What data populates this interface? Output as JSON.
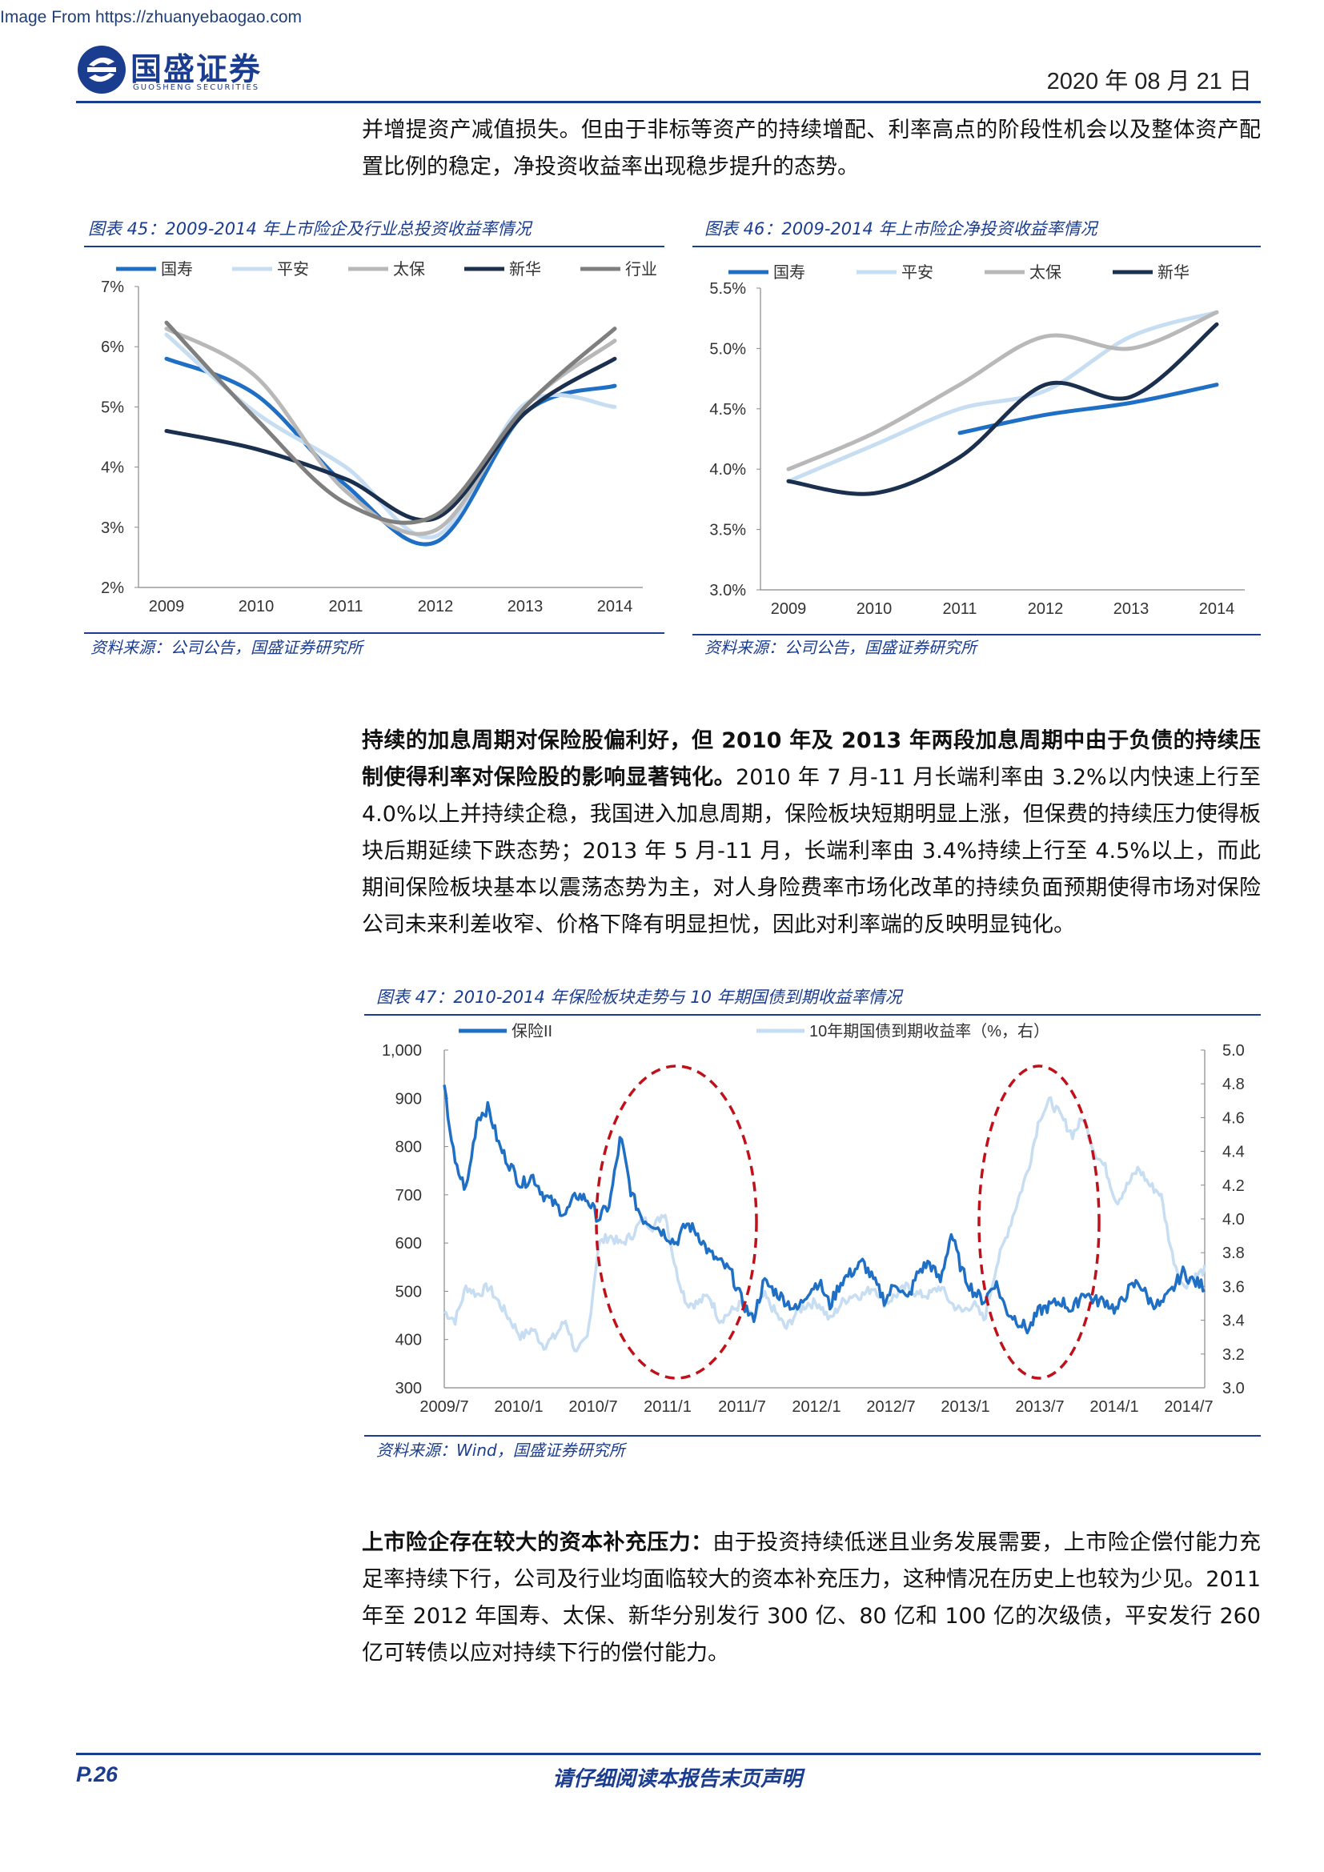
{
  "watermark": "Image From https://zhuanyebaogao.com",
  "brand": {
    "name_cn": "国盛证券",
    "name_en": "GUOSHENG SECURITIES"
  },
  "header": {
    "date": "2020 年 08 月 21 日"
  },
  "intro_text": "并增提资产减值损失。但由于非标等资产的持续增配、利率高点的阶段性机会以及整体资产配置比例的稳定，净投资收益率出现稳步提升的态势。",
  "para2": {
    "bold": "持续的加息周期对保险股偏利好，但 2010 年及 2013 年两段加息周期中由于负债的持续压制使得利率对保险股的影响显著钝化。",
    "text": "2010 年 7 月-11 月长端利率由 3.2%以内快速上行至 4.0%以上并持续企稳，我国进入加息周期，保险板块短期明显上涨，但保费的持续压力使得板块后期延续下跌态势；2013 年 5 月-11 月，长端利率由 3.4%持续上行至 4.5%以上，而此期间保险板块基本以震荡态势为主，对人身险费率市场化改革的持续负面预期使得市场对保险公司未来利差收窄、价格下降有明显担忧，因此对利率端的反映明显钝化。"
  },
  "para3": {
    "bold": "上市险企存在较大的资本补充压力：",
    "text": "由于投资持续低迷且业务发展需要，上市险企偿付能力充足率持续下行，公司及行业均面临较大的资本补充压力，这种情况在历史上也较为少见。2011 年至 2012 年国寿、太保、新华分别发行 300 亿、80 亿和 100 亿的次级债，平安发行 260 亿可转债以应对持续下行的偿付能力。"
  },
  "fig45": {
    "title": "图表 45：2009-2014 年上市险企及行业总投资收益率情况",
    "source": "资料来源：公司公告，国盛证券研究所"
  },
  "fig46": {
    "title": "图表 46：2009-2014 年上市险企净投资收益率情况",
    "source": "资料来源：公司公告，国盛证券研究所"
  },
  "fig47": {
    "title": "图表 47：2010-2014 年保险板块走势与 10 年期国债到期收益率情况",
    "source": "资料来源：Wind，国盛证券研究所"
  },
  "footer": {
    "page": "P.26",
    "disclaimer": "请仔细阅读本报告末页声明"
  },
  "chart_data": [
    {
      "type": "line",
      "id": "fig45",
      "x": [
        "2009",
        "2010",
        "2011",
        "2012",
        "2013",
        "2014"
      ],
      "ylim": [
        2,
        7
      ],
      "yticks": [
        "2%",
        "3%",
        "4%",
        "5%",
        "6%",
        "7%"
      ],
      "series": [
        {
          "name": "国寿",
          "color": "#1f6fc5",
          "values": [
            5.8,
            5.2,
            3.7,
            2.75,
            4.9,
            5.35
          ]
        },
        {
          "name": "平安",
          "color": "#c6ddf2",
          "values": [
            6.2,
            4.9,
            4.0,
            2.85,
            5.05,
            5.0
          ]
        },
        {
          "name": "太保",
          "color": "#b8b8b8",
          "values": [
            6.3,
            5.5,
            3.6,
            2.95,
            5.0,
            6.1
          ]
        },
        {
          "name": "新华",
          "color": "#1b2f4e",
          "values": [
            4.6,
            4.3,
            3.8,
            3.15,
            4.9,
            5.8
          ]
        },
        {
          "name": "行业",
          "color": "#7f7f7f",
          "values": [
            6.4,
            4.8,
            3.4,
            3.2,
            5.0,
            6.3
          ]
        }
      ]
    },
    {
      "type": "line",
      "id": "fig46",
      "x": [
        "2009",
        "2010",
        "2011",
        "2012",
        "2013",
        "2014"
      ],
      "ylim": [
        3.0,
        5.5
      ],
      "yticks": [
        "3.0%",
        "3.5%",
        "4.0%",
        "4.5%",
        "5.0%",
        "5.5%"
      ],
      "series": [
        {
          "name": "国寿",
          "color": "#1f6fc5",
          "values": [
            null,
            null,
            4.3,
            4.45,
            4.55,
            4.7
          ]
        },
        {
          "name": "平安",
          "color": "#c6ddf2",
          "values": [
            3.9,
            4.2,
            4.5,
            4.65,
            5.1,
            5.3
          ]
        },
        {
          "name": "太保",
          "color": "#b8b8b8",
          "values": [
            4.0,
            4.3,
            4.7,
            5.1,
            5.0,
            5.3
          ]
        },
        {
          "name": "新华",
          "color": "#1b2f4e",
          "values": [
            3.9,
            3.8,
            4.1,
            4.7,
            4.6,
            5.2
          ]
        }
      ]
    },
    {
      "type": "line",
      "id": "fig47",
      "x_ticks": [
        "2009/7",
        "2010/1",
        "2010/7",
        "2011/1",
        "2011/7",
        "2012/1",
        "2012/7",
        "2013/1",
        "2013/7",
        "2014/1",
        "2014/7"
      ],
      "ylim_left": [
        300,
        1000
      ],
      "yticks_left": [
        "300",
        "400",
        "500",
        "600",
        "700",
        "800",
        "900",
        "1,000"
      ],
      "ylim_right": [
        3.0,
        5.0
      ],
      "yticks_right": [
        "3.0",
        "3.2",
        "3.4",
        "3.6",
        "3.8",
        "4.0",
        "4.2",
        "4.4",
        "4.6",
        "4.8",
        "5.0"
      ],
      "series": [
        {
          "name": "保险II",
          "axis": "left",
          "color": "#1f6fc5",
          "values": [
            920,
            760,
            710,
            860,
            880,
            800,
            760,
            720,
            740,
            700,
            680,
            660,
            700,
            690,
            650,
            680,
            820,
            700,
            650,
            640,
            620,
            600,
            640,
            620,
            580,
            560,
            540,
            480,
            440,
            520,
            500,
            480,
            460,
            500,
            520,
            470,
            520,
            540,
            560,
            520,
            480,
            520,
            480,
            540,
            560,
            520,
            620,
            540,
            500,
            480,
            520,
            460,
            440,
            420,
            460,
            470,
            480,
            460,
            500,
            480,
            480,
            460,
            500,
            520,
            480,
            470,
            500,
            540,
            520,
            510
          ]
        },
        {
          "name": "10年期国债到期收益率（%，右）",
          "axis": "right",
          "color": "#c6ddf2",
          "values": [
            3.45,
            3.4,
            3.6,
            3.55,
            3.6,
            3.5,
            3.4,
            3.3,
            3.35,
            3.25,
            3.3,
            3.4,
            3.2,
            3.3,
            3.85,
            3.9,
            3.85,
            3.9,
            4.0,
            3.95,
            4.05,
            3.7,
            3.5,
            3.5,
            3.55,
            3.4,
            3.45,
            3.5,
            3.4,
            3.55,
            3.45,
            3.35,
            3.45,
            3.5,
            3.5,
            3.4,
            3.5,
            3.55,
            3.55,
            3.6,
            3.5,
            3.55,
            3.6,
            3.55,
            3.55,
            3.6,
            3.5,
            3.45,
            3.5,
            3.4,
            3.7,
            3.9,
            4.1,
            4.3,
            4.6,
            4.7,
            4.6,
            4.5,
            4.6,
            4.4,
            4.3,
            4.1,
            4.2,
            4.3,
            4.2,
            4.15,
            3.8,
            3.6,
            3.65,
            3.7
          ]
        }
      ],
      "annotations": [
        "dashed-ellipse-2010-rate-hike",
        "dashed-ellipse-2013-rate-hike"
      ]
    }
  ]
}
